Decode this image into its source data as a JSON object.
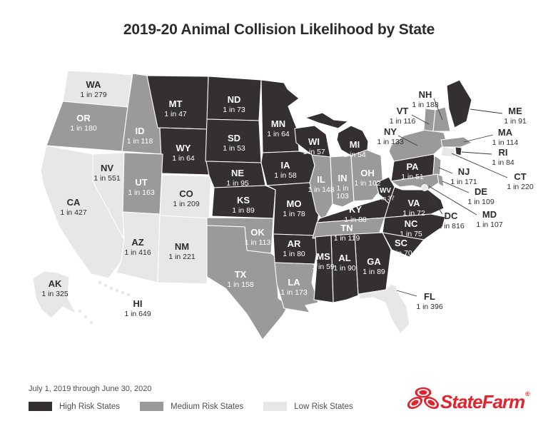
{
  "title": "2019-20 Animal Collision Likelihood by State",
  "footer": {
    "date_range": "July 1, 2019 through June 30, 2020"
  },
  "legend": {
    "items": [
      {
        "label": "High Risk States",
        "risk": "high"
      },
      {
        "label": "Medium Risk States",
        "risk": "medium"
      },
      {
        "label": "Low Risk States",
        "risk": "low"
      }
    ]
  },
  "brand": {
    "logo_text": "StateFarm",
    "registered": "®"
  },
  "colors": {
    "high": "#343031",
    "medium": "#9a9a9a",
    "low": "#e8e7e7",
    "map_stroke": "#ffffff",
    "label_dark": "#2e2c2d",
    "label_light": "#ffffff",
    "leader": "#3a3a3a",
    "brand_red": "#e2242e"
  },
  "states": [
    {
      "abbr": "WA",
      "value": "1 in 279",
      "risk": "low",
      "label": [
        131,
        119
      ]
    },
    {
      "abbr": "OR",
      "value": "1 in 180",
      "risk": "medium",
      "label": [
        117,
        166
      ]
    },
    {
      "abbr": "CA",
      "value": "1 in 427",
      "risk": "low",
      "label": [
        103,
        284
      ]
    },
    {
      "abbr": "NV",
      "value": "1 in 551",
      "risk": "low",
      "label": [
        150,
        236
      ]
    },
    {
      "abbr": "ID",
      "value": "1 in 118",
      "risk": "medium",
      "label": [
        196,
        184
      ]
    },
    {
      "abbr": "MT",
      "value": "1 in 47",
      "risk": "high",
      "label": [
        246,
        146
      ]
    },
    {
      "abbr": "WY",
      "value": "1 in 64",
      "risk": "high",
      "label": [
        257,
        208
      ]
    },
    {
      "abbr": "UT",
      "value": "1 in 163",
      "risk": "medium",
      "label": [
        198,
        256
      ]
    },
    {
      "abbr": "CO",
      "value": "1 in 209",
      "risk": "low",
      "label": [
        261,
        272
      ]
    },
    {
      "abbr": "AZ",
      "value": "1 in 416",
      "risk": "low",
      "label": [
        193,
        340
      ]
    },
    {
      "abbr": "NM",
      "value": "1 in 221",
      "risk": "low",
      "label": [
        255,
        346
      ]
    },
    {
      "abbr": "ND",
      "value": "1 in 73",
      "risk": "high",
      "label": [
        328,
        140
      ]
    },
    {
      "abbr": "SD",
      "value": "1 in 53",
      "risk": "high",
      "label": [
        328,
        194
      ]
    },
    {
      "abbr": "NE",
      "value": "1 in 95",
      "risk": "high",
      "label": [
        333,
        243
      ]
    },
    {
      "abbr": "KS",
      "value": "1 in 89",
      "risk": "high",
      "label": [
        341,
        281
      ]
    },
    {
      "abbr": "OK",
      "value": "1 in 113",
      "risk": "medium",
      "label": [
        361,
        326
      ]
    },
    {
      "abbr": "TX",
      "value": "1 in 158",
      "risk": "medium",
      "label": [
        337,
        385
      ]
    },
    {
      "abbr": "MN",
      "value": "1 in 64",
      "risk": "high",
      "label": [
        390,
        174
      ]
    },
    {
      "abbr": "IA",
      "value": "1 in 58",
      "risk": "high",
      "label": [
        400,
        232
      ]
    },
    {
      "abbr": "MO",
      "value": "1 in 78",
      "risk": "high",
      "label": [
        412,
        286
      ]
    },
    {
      "abbr": "AR",
      "value": "1 in 80",
      "risk": "high",
      "label": [
        412,
        342
      ]
    },
    {
      "abbr": "LA",
      "value": "1 in 173",
      "risk": "medium",
      "label": [
        412,
        396
      ]
    },
    {
      "abbr": "WI",
      "value": "1 in 57",
      "risk": "high",
      "label": [
        440,
        199
      ]
    },
    {
      "abbr": "IL",
      "value": "1 in 148",
      "risk": "medium",
      "label": [
        450,
        252
      ]
    },
    {
      "abbr": "IN",
      "value": "1 in 103",
      "risk": "medium",
      "label": [
        480,
        250
      ],
      "value_lines": [
        "1 in",
        "103"
      ]
    },
    {
      "abbr": "MI",
      "value": "1 in 54",
      "risk": "high",
      "label": [
        497,
        203
      ]
    },
    {
      "abbr": "OH",
      "value": "1 in 102",
      "risk": "medium",
      "label": [
        515,
        243
      ]
    },
    {
      "abbr": "KY",
      "value": "1 in 88",
      "risk": "high",
      "label": [
        498,
        294
      ]
    },
    {
      "abbr": "TN",
      "value": "1 in 119",
      "risk": "medium",
      "label": [
        486,
        320
      ]
    },
    {
      "abbr": "WV",
      "value": "1 in 37",
      "risk": "high",
      "label": [
        540,
        266
      ],
      "small": true
    },
    {
      "abbr": "VA",
      "value": "1 in 72",
      "risk": "high",
      "label": [
        580,
        285
      ]
    },
    {
      "abbr": "NC",
      "value": "1 in 75",
      "risk": "high",
      "label": [
        576,
        314
      ]
    },
    {
      "abbr": "SC",
      "value": "1 in 70",
      "risk": "high",
      "label": [
        562,
        341
      ]
    },
    {
      "abbr": "GA",
      "value": "1 in 89",
      "risk": "high",
      "label": [
        524,
        367
      ]
    },
    {
      "abbr": "AL",
      "value": "1 in 90",
      "risk": "high",
      "label": [
        483,
        362
      ]
    },
    {
      "abbr": "MS",
      "value": "1 in 59",
      "risk": "high",
      "label": [
        453,
        360
      ]
    },
    {
      "abbr": "FL",
      "value": "1 in 396",
      "risk": "low",
      "label": [
        602,
        416
      ],
      "external": true,
      "leader": [
        584,
        415,
        556,
        407
      ]
    },
    {
      "abbr": "PA",
      "value": "1 in 51",
      "risk": "high",
      "label": [
        578,
        234
      ]
    },
    {
      "abbr": "NY",
      "value": "1 in 133",
      "risk": "medium",
      "label": [
        547,
        185
      ],
      "external": true,
      "leader": [
        558,
        190,
        585,
        204
      ]
    },
    {
      "abbr": "NJ",
      "value": "1 in 171",
      "risk": "medium",
      "label": [
        650,
        241
      ],
      "external": true,
      "leader": [
        634,
        243,
        615,
        235
      ]
    },
    {
      "abbr": "CT",
      "value": "1 in 220",
      "risk": "low",
      "label": [
        729,
        248
      ],
      "external": true,
      "leader": [
        711,
        249,
        633,
        215
      ]
    },
    {
      "abbr": "RI",
      "value": "1 in 84",
      "risk": "high",
      "label": [
        705,
        214
      ],
      "external": true,
      "leader": [
        689,
        216,
        647,
        213
      ]
    },
    {
      "abbr": "MA",
      "value": "1 in 114",
      "risk": "medium",
      "label": [
        708,
        186
      ],
      "external": true,
      "leader": [
        691,
        189,
        650,
        199
      ]
    },
    {
      "abbr": "VT",
      "value": "1 in 116",
      "risk": "medium",
      "label": [
        564,
        156
      ],
      "external": true,
      "leader": [
        577,
        161,
        601,
        174
      ]
    },
    {
      "abbr": "NH",
      "value": "1 in 188",
      "risk": "medium",
      "label": [
        596,
        133
      ],
      "external": true,
      "leader": [
        608,
        138,
        620,
        168
      ]
    },
    {
      "abbr": "ME",
      "value": "1 in 91",
      "risk": "high",
      "label": [
        722,
        156
      ],
      "external": true,
      "leader": [
        704,
        159,
        659,
        153
      ]
    },
    {
      "abbr": "MD",
      "value": "1 in 107",
      "risk": "medium",
      "label": [
        686,
        301
      ],
      "external": true,
      "leader": [
        668,
        301,
        601,
        261
      ]
    },
    {
      "abbr": "DE",
      "value": "1 in 109",
      "risk": "medium",
      "label": [
        674,
        269
      ],
      "external": true,
      "leader": [
        657,
        270,
        620,
        254
      ]
    },
    {
      "abbr": "DC",
      "value": "1 in 816",
      "risk": "low",
      "label": [
        632,
        303
      ],
      "external": true,
      "leader": [
        620,
        300,
        598,
        267
      ]
    },
    {
      "abbr": "AK",
      "value": "1 in 325",
      "risk": "low",
      "label": [
        77,
        398
      ]
    },
    {
      "abbr": "HI",
      "value": "1 in 649",
      "risk": "low",
      "label": [
        193,
        426
      ],
      "external": true
    }
  ]
}
